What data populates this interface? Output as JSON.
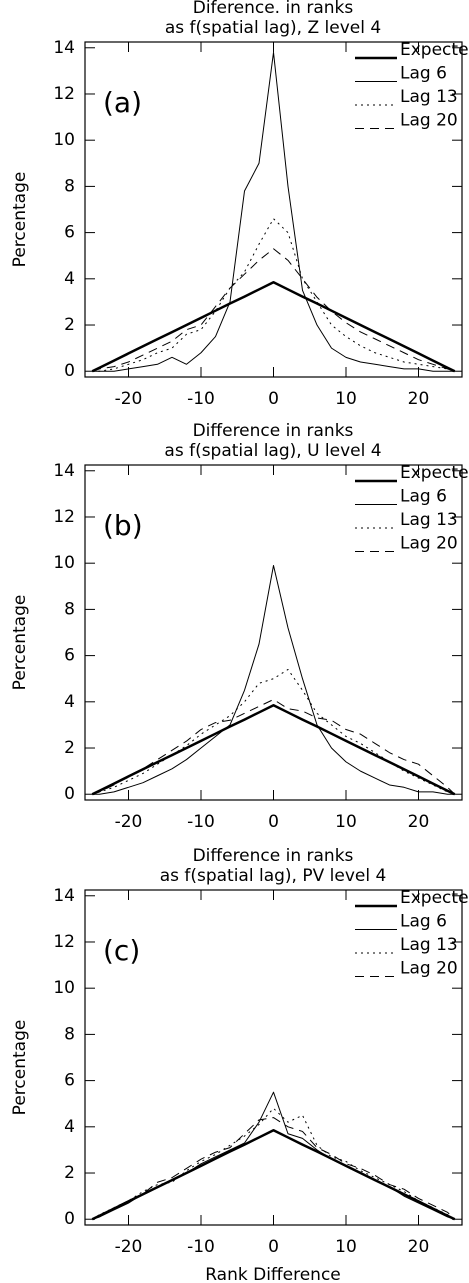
{
  "chart_data": [
    {
      "type": "line",
      "title": [
        "Diference. in ranks",
        "as f(spatial lag), Z level 4"
      ],
      "panel_label": "(a)",
      "ylabel": "Percentage",
      "x": [
        -25,
        -24,
        -22,
        -20,
        -18,
        -16,
        -14,
        -12,
        -10,
        -8,
        -6,
        -4,
        -2,
        0,
        2,
        4,
        6,
        8,
        10,
        12,
        14,
        16,
        18,
        20,
        22,
        24,
        25
      ],
      "xlim": [
        -26,
        26
      ],
      "xticks": [
        -20,
        -10,
        0,
        10,
        20
      ],
      "ylim": [
        -0.25,
        14.25
      ],
      "yticks": [
        0,
        2,
        4,
        6,
        8,
        10,
        12,
        14
      ],
      "legend": "upper right",
      "series": [
        {
          "name": "Expected",
          "color": "#000000",
          "dash": "solid",
          "width": 2.5,
          "values": [
            0,
            0.15,
            0.46,
            0.77,
            1.08,
            1.39,
            1.69,
            2.0,
            2.31,
            2.62,
            2.93,
            3.23,
            3.54,
            3.85,
            3.54,
            3.23,
            2.93,
            2.62,
            2.31,
            2.0,
            1.69,
            1.39,
            1.08,
            0.77,
            0.46,
            0.15,
            0
          ]
        },
        {
          "name": "Lag 6",
          "color": "#000000",
          "dash": "solid",
          "width": 1,
          "values": [
            0,
            0,
            0,
            0.1,
            0.2,
            0.3,
            0.6,
            0.3,
            0.8,
            1.5,
            3,
            7.8,
            9,
            13.8,
            8,
            3.5,
            2,
            1,
            0.6,
            0.4,
            0.3,
            0.2,
            0.1,
            0.1,
            0,
            0,
            0
          ]
        },
        {
          "name": "Lag 13",
          "color": "#000000",
          "dash": "dotted",
          "width": 1,
          "values": [
            0,
            0,
            0.1,
            0.3,
            0.5,
            0.8,
            1,
            1.6,
            1.8,
            2.6,
            3.6,
            4.3,
            5.5,
            6.6,
            6,
            4,
            3,
            2,
            1.5,
            1.1,
            0.8,
            0.6,
            0.4,
            0.3,
            0.2,
            0.1,
            0
          ]
        },
        {
          "name": "Lag 20",
          "color": "#000000",
          "dash": "dashed",
          "width": 1,
          "values": [
            0,
            0.1,
            0.2,
            0.4,
            0.7,
            1,
            1.3,
            1.8,
            2,
            2.8,
            3.6,
            4.2,
            4.8,
            5.3,
            4.8,
            4,
            3.2,
            2.6,
            2.1,
            1.7,
            1.4,
            1.1,
            0.8,
            0.5,
            0.3,
            0.1,
            0
          ]
        }
      ]
    },
    {
      "type": "line",
      "title": [
        "Difference in ranks",
        "as f(spatial lag), U level 4"
      ],
      "panel_label": "(b)",
      "ylabel": "Percentage",
      "x": [
        -25,
        -24,
        -22,
        -20,
        -18,
        -16,
        -14,
        -12,
        -10,
        -8,
        -6,
        -4,
        -2,
        0,
        2,
        4,
        6,
        8,
        10,
        12,
        14,
        16,
        18,
        20,
        22,
        24,
        25
      ],
      "xlim": [
        -26,
        26
      ],
      "xticks": [
        -20,
        -10,
        0,
        10,
        20
      ],
      "ylim": [
        -0.25,
        14.25
      ],
      "yticks": [
        0,
        2,
        4,
        6,
        8,
        10,
        12,
        14
      ],
      "legend": "upper right",
      "series": [
        {
          "name": "Expected",
          "color": "#000000",
          "dash": "solid",
          "width": 2.5,
          "values": [
            0,
            0.15,
            0.46,
            0.77,
            1.08,
            1.39,
            1.69,
            2.0,
            2.31,
            2.62,
            2.93,
            3.23,
            3.54,
            3.85,
            3.54,
            3.23,
            2.93,
            2.62,
            2.31,
            2.0,
            1.69,
            1.39,
            1.08,
            0.77,
            0.46,
            0.15,
            0
          ]
        },
        {
          "name": "Lag 6",
          "color": "#000000",
          "dash": "solid",
          "width": 1,
          "values": [
            0,
            0,
            0.1,
            0.3,
            0.5,
            0.8,
            1.1,
            1.5,
            2,
            2.5,
            3,
            4.5,
            6.5,
            9.9,
            7.2,
            5,
            3,
            2,
            1.4,
            1,
            0.7,
            0.4,
            0.3,
            0.1,
            0.1,
            0,
            0
          ]
        },
        {
          "name": "Lag 13",
          "color": "#000000",
          "dash": "dotted",
          "width": 1,
          "values": [
            0,
            0.1,
            0.3,
            0.6,
            0.9,
            1.3,
            1.7,
            2.1,
            2.6,
            3,
            3.4,
            4,
            4.8,
            5,
            5.4,
            4.5,
            3.5,
            3,
            2.5,
            2.2,
            1.8,
            1.4,
            1,
            0.7,
            0.4,
            0.1,
            0
          ]
        },
        {
          "name": "Lag 20",
          "color": "#000000",
          "dash": "dashed",
          "width": 1,
          "values": [
            0,
            0.1,
            0.4,
            0.8,
            1.1,
            1.5,
            1.9,
            2.3,
            2.8,
            3.1,
            3.2,
            3.5,
            3.8,
            4.1,
            3.7,
            3.6,
            3.3,
            3.2,
            2.8,
            2.6,
            2.2,
            1.8,
            1.5,
            1.3,
            0.8,
            0.3,
            0
          ]
        }
      ]
    },
    {
      "type": "line",
      "title": [
        "Difference in ranks",
        "as f(spatial lag), PV level 4"
      ],
      "panel_label": "(c)",
      "ylabel": "Percentage",
      "xlabel": "Rank Difference",
      "x": [
        -25,
        -24,
        -22,
        -20,
        -18,
        -16,
        -14,
        -12,
        -10,
        -8,
        -6,
        -4,
        -2,
        0,
        2,
        4,
        6,
        8,
        10,
        12,
        14,
        16,
        18,
        20,
        22,
        24,
        25
      ],
      "xlim": [
        -26,
        26
      ],
      "xticks": [
        -20,
        -10,
        0,
        10,
        20
      ],
      "ylim": [
        -0.25,
        14.25
      ],
      "yticks": [
        0,
        2,
        4,
        6,
        8,
        10,
        12,
        14
      ],
      "legend": "upper right",
      "series": [
        {
          "name": "Expected",
          "color": "#000000",
          "dash": "solid",
          "width": 2.5,
          "values": [
            0,
            0.15,
            0.46,
            0.77,
            1.08,
            1.39,
            1.69,
            2.0,
            2.31,
            2.62,
            2.93,
            3.23,
            3.54,
            3.85,
            3.54,
            3.23,
            2.93,
            2.62,
            2.31,
            2.0,
            1.69,
            1.39,
            1.08,
            0.77,
            0.46,
            0.15,
            0
          ]
        },
        {
          "name": "Lag 6",
          "color": "#000000",
          "dash": "solid",
          "width": 1,
          "values": [
            0,
            0.1,
            0.4,
            0.7,
            1.1,
            1.4,
            1.7,
            2,
            2.4,
            2.7,
            3,
            3.3,
            4.2,
            5.5,
            3.7,
            3.5,
            3,
            2.6,
            2.3,
            2,
            1.7,
            1.4,
            1,
            0.7,
            0.4,
            0.1,
            0
          ]
        },
        {
          "name": "Lag 13",
          "color": "#000000",
          "dash": "dotted",
          "width": 1,
          "values": [
            0,
            0.2,
            0.5,
            0.8,
            1.2,
            1.5,
            1.6,
            2.1,
            2.5,
            2.8,
            3.2,
            3.6,
            4.1,
            4.8,
            4.2,
            4.5,
            3.2,
            2.7,
            2.5,
            2.1,
            1.8,
            1.5,
            1.2,
            0.8,
            0.5,
            0.2,
            0
          ]
        },
        {
          "name": "Lag 20",
          "color": "#000000",
          "dash": "dashed",
          "width": 1,
          "values": [
            0,
            0.1,
            0.5,
            0.8,
            1.1,
            1.6,
            1.8,
            2.2,
            2.6,
            2.9,
            3.1,
            3.7,
            4.3,
            4.4,
            4,
            3.8,
            3.1,
            2.8,
            2.4,
            2.2,
            1.9,
            1.5,
            1.3,
            0.9,
            0.6,
            0.3,
            0
          ]
        }
      ]
    }
  ]
}
